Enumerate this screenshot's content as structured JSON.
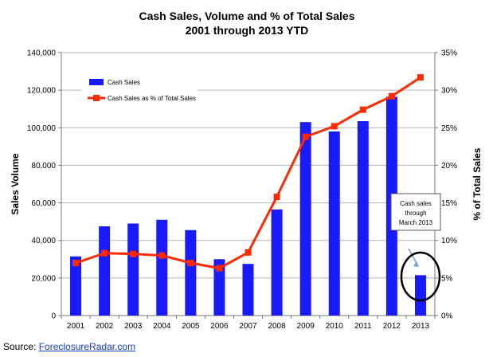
{
  "chart_data": {
    "type": "bar",
    "title": [
      "Cash Sales, Volume and % of Total Sales",
      "2001 through 2013 YTD"
    ],
    "ylabel": "Sales Volume",
    "y2label": "% of Total Sales",
    "categories": [
      "2001",
      "2002",
      "2003",
      "2004",
      "2005",
      "2006",
      "2007",
      "2008",
      "2009",
      "2010",
      "2011",
      "2012",
      "2013"
    ],
    "ylim": [
      0,
      140000
    ],
    "y2lim": [
      0,
      35
    ],
    "yticks": [
      "0",
      "20,000",
      "40,000",
      "60,000",
      "80,000",
      "100,000",
      "120,000",
      "140,000"
    ],
    "y2ticks": [
      "0%",
      "5%",
      "10%",
      "15%",
      "20%",
      "25%",
      "30%",
      "35%"
    ],
    "grid": "horizontal",
    "series": [
      {
        "name": "Cash Sales",
        "kind": "bar",
        "axis": "left",
        "color": "#1a1aff",
        "values": [
          31500,
          47500,
          49000,
          51000,
          45500,
          30000,
          27500,
          56500,
          103000,
          98000,
          103500,
          116500,
          21500
        ]
      },
      {
        "name": "Cash Sales as % of Total Sales",
        "kind": "line",
        "axis": "right",
        "color": "#ff2a00",
        "values": [
          7.0,
          8.3,
          8.2,
          8.0,
          7.0,
          6.3,
          8.4,
          15.8,
          23.8,
          25.2,
          27.4,
          29.2,
          31.7
        ]
      }
    ],
    "legend": {
      "placement": "top-left"
    },
    "annotation": {
      "text": [
        "Cash sales",
        "through",
        "March 2013"
      ],
      "target": "2013"
    }
  },
  "source": {
    "prefix": "Source: ",
    "link_text": "ForeclosureRadar.com"
  }
}
